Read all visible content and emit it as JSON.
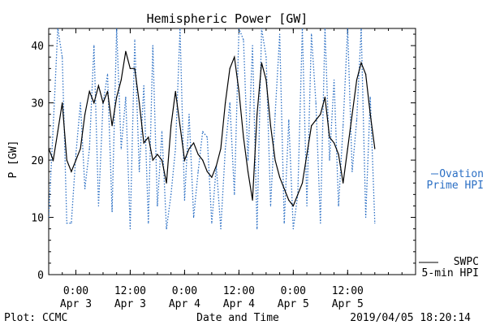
{
  "chart_data": {
    "type": "line",
    "title": "Hemispheric Power [GW]",
    "xlabel": "Date and Time",
    "ylabel": "P [GW]",
    "ylim": [
      0,
      43
    ],
    "xlim": [
      "2019-04-02 18:00",
      "2019-04-06 03:00"
    ],
    "yticks": [
      0,
      10,
      20,
      30,
      40
    ],
    "xticks": [
      {
        "time": "2019-04-03 00:00",
        "line1": "0:00",
        "line2": "Apr 3"
      },
      {
        "time": "2019-04-03 12:00",
        "line1": "12:00",
        "line2": "Apr 3"
      },
      {
        "time": "2019-04-04 00:00",
        "line1": "0:00",
        "line2": "Apr 4"
      },
      {
        "time": "2019-04-04 12:00",
        "line1": "12:00",
        "line2": "Apr 4"
      },
      {
        "time": "2019-04-05 00:00",
        "line1": "0:00",
        "line2": "Apr 5"
      },
      {
        "time": "2019-04-05 12:00",
        "line1": "12:00",
        "line2": "Apr 5"
      }
    ],
    "grid": false,
    "legend_placement": "right",
    "series": [
      {
        "name": "Ovation Prime HPI",
        "label_lines": [
          "Ovation",
          "Prime HPI"
        ],
        "color": "#2b6fc4",
        "style": "dotted",
        "x": [
          "2019-04-02 18:00",
          "2019-04-02 19:00",
          "2019-04-02 20:00",
          "2019-04-02 21:00",
          "2019-04-02 22:00",
          "2019-04-02 23:00",
          "2019-04-03 00:00",
          "2019-04-03 01:00",
          "2019-04-03 02:00",
          "2019-04-03 03:00",
          "2019-04-03 04:00",
          "2019-04-03 05:00",
          "2019-04-03 06:00",
          "2019-04-03 07:00",
          "2019-04-03 08:00",
          "2019-04-03 09:00",
          "2019-04-03 10:00",
          "2019-04-03 11:00",
          "2019-04-03 12:00",
          "2019-04-03 13:00",
          "2019-04-03 14:00",
          "2019-04-03 15:00",
          "2019-04-03 16:00",
          "2019-04-03 17:00",
          "2019-04-03 18:00",
          "2019-04-03 19:00",
          "2019-04-03 20:00",
          "2019-04-03 21:00",
          "2019-04-03 22:00",
          "2019-04-03 23:00",
          "2019-04-04 00:00",
          "2019-04-04 01:00",
          "2019-04-04 02:00",
          "2019-04-04 03:00",
          "2019-04-04 04:00",
          "2019-04-04 05:00",
          "2019-04-04 06:00",
          "2019-04-04 07:00",
          "2019-04-04 08:00",
          "2019-04-04 09:00",
          "2019-04-04 10:00",
          "2019-04-04 11:00",
          "2019-04-04 12:00",
          "2019-04-04 13:00",
          "2019-04-04 14:00",
          "2019-04-04 15:00",
          "2019-04-04 16:00",
          "2019-04-04 17:00",
          "2019-04-04 18:00",
          "2019-04-04 19:00",
          "2019-04-04 20:00",
          "2019-04-04 21:00",
          "2019-04-04 22:00",
          "2019-04-04 23:00",
          "2019-04-05 00:00",
          "2019-04-05 01:00",
          "2019-04-05 02:00",
          "2019-04-05 03:00",
          "2019-04-05 04:00",
          "2019-04-05 05:00",
          "2019-04-05 06:00",
          "2019-04-05 07:00",
          "2019-04-05 08:00",
          "2019-04-05 09:00",
          "2019-04-05 10:00",
          "2019-04-05 11:00",
          "2019-04-05 12:00",
          "2019-04-05 13:00",
          "2019-04-05 14:00",
          "2019-04-05 15:00",
          "2019-04-05 16:00",
          "2019-04-05 17:00",
          "2019-04-05 18:00"
        ],
        "values": [
          10,
          26,
          43,
          38,
          9,
          9,
          21,
          30,
          15,
          22,
          40,
          12,
          30,
          35,
          11,
          43,
          22,
          31,
          8,
          41,
          18,
          33,
          9,
          40,
          12,
          25,
          8,
          14,
          22,
          43,
          13,
          28,
          10,
          18,
          25,
          24,
          9,
          19,
          8,
          22,
          30,
          14,
          43,
          41,
          20,
          40,
          8,
          43,
          38,
          12,
          28,
          42,
          9,
          27,
          8,
          14,
          43,
          12,
          42,
          30,
          9,
          43,
          20,
          34,
          12,
          26,
          43,
          18,
          27,
          43,
          10,
          31,
          9
        ]
      },
      {
        "name": "SWPC 5-min HPI",
        "label_lines": [
          "SWPC",
          "5-min HPI"
        ],
        "color": "#000000",
        "style": "solid",
        "x": [
          "2019-04-02 18:00",
          "2019-04-02 19:00",
          "2019-04-02 20:00",
          "2019-04-02 21:00",
          "2019-04-02 22:00",
          "2019-04-02 23:00",
          "2019-04-03 00:00",
          "2019-04-03 01:00",
          "2019-04-03 02:00",
          "2019-04-03 03:00",
          "2019-04-03 04:00",
          "2019-04-03 05:00",
          "2019-04-03 06:00",
          "2019-04-03 07:00",
          "2019-04-03 08:00",
          "2019-04-03 09:00",
          "2019-04-03 10:00",
          "2019-04-03 11:00",
          "2019-04-03 12:00",
          "2019-04-03 13:00",
          "2019-04-03 14:00",
          "2019-04-03 15:00",
          "2019-04-03 16:00",
          "2019-04-03 17:00",
          "2019-04-03 18:00",
          "2019-04-03 19:00",
          "2019-04-03 20:00",
          "2019-04-03 21:00",
          "2019-04-03 22:00",
          "2019-04-03 23:00",
          "2019-04-04 00:00",
          "2019-04-04 01:00",
          "2019-04-04 02:00",
          "2019-04-04 03:00",
          "2019-04-04 04:00",
          "2019-04-04 05:00",
          "2019-04-04 06:00",
          "2019-04-04 07:00",
          "2019-04-04 08:00",
          "2019-04-04 09:00",
          "2019-04-04 10:00",
          "2019-04-04 11:00",
          "2019-04-04 12:00",
          "2019-04-04 13:00",
          "2019-04-04 14:00",
          "2019-04-04 15:00",
          "2019-04-04 16:00",
          "2019-04-04 17:00",
          "2019-04-04 18:00",
          "2019-04-04 19:00",
          "2019-04-04 20:00",
          "2019-04-04 21:00",
          "2019-04-04 22:00",
          "2019-04-04 23:00",
          "2019-04-05 00:00",
          "2019-04-05 01:00",
          "2019-04-05 02:00",
          "2019-04-05 03:00",
          "2019-04-05 04:00",
          "2019-04-05 05:00",
          "2019-04-05 06:00",
          "2019-04-05 07:00",
          "2019-04-05 08:00",
          "2019-04-05 09:00",
          "2019-04-05 10:00",
          "2019-04-05 11:00",
          "2019-04-05 12:00",
          "2019-04-05 13:00",
          "2019-04-05 14:00",
          "2019-04-05 15:00",
          "2019-04-05 16:00",
          "2019-04-05 17:00",
          "2019-04-05 18:00"
        ],
        "values": [
          22,
          20,
          25,
          30,
          20,
          18,
          20,
          22,
          28,
          32,
          30,
          33,
          30,
          32,
          26,
          31,
          34,
          39,
          36,
          36,
          30,
          23,
          24,
          20,
          21,
          20,
          16,
          26,
          32,
          26,
          20,
          22,
          23,
          21,
          20,
          18,
          17,
          19,
          22,
          30,
          36,
          38,
          32,
          24,
          18,
          13,
          28,
          37,
          34,
          26,
          20,
          17,
          15,
          13,
          12,
          14,
          16,
          21,
          26,
          27,
          28,
          31,
          24,
          23,
          21,
          16,
          22,
          28,
          34,
          37,
          35,
          28,
          22
        ]
      }
    ]
  },
  "footer": {
    "left": "Plot: CCMC",
    "right": "2019/04/05 18:20:14"
  }
}
